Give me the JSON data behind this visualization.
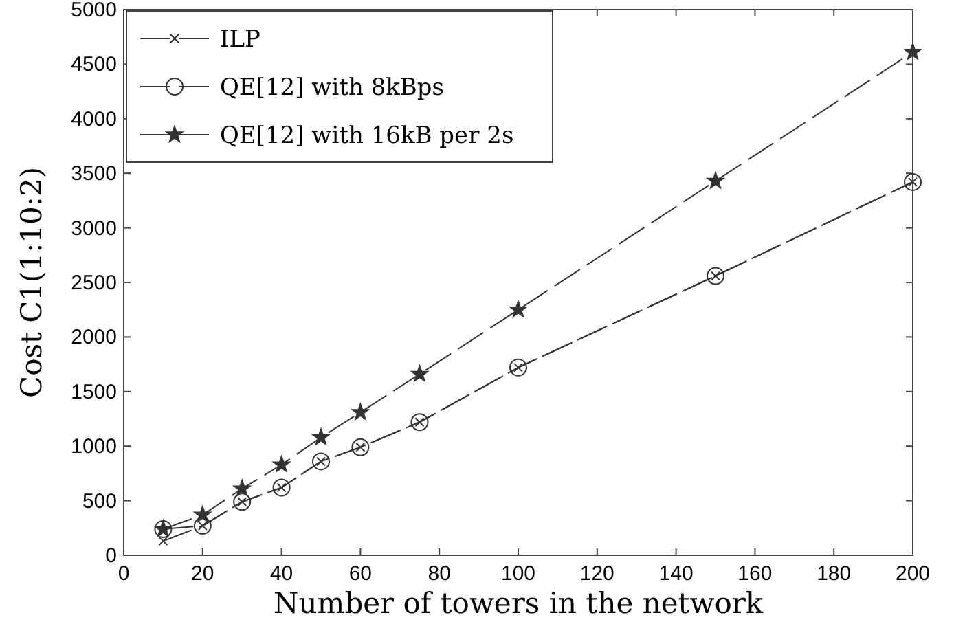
{
  "chart_data": {
    "type": "line",
    "xlabel": "Number of towers in the network",
    "ylabel": "Cost C1(1:10:2)",
    "x": [
      10,
      20,
      30,
      40,
      50,
      60,
      75,
      100,
      150,
      200
    ],
    "series": [
      {
        "name": "ILP",
        "color": "#333333",
        "marker": "cross",
        "values": [
          130,
          270,
          490,
          620,
          860,
          990,
          1220,
          1720,
          2560,
          3420
        ]
      },
      {
        "name": "QE[12] with 8kBps",
        "color": "#333333",
        "marker": "circle",
        "values": [
          240,
          270,
          490,
          620,
          860,
          990,
          1220,
          1720,
          2560,
          3420
        ]
      },
      {
        "name": "QE[12] with 16kB per 2s",
        "color": "#333333",
        "marker": "star",
        "values": [
          240,
          370,
          610,
          830,
          1080,
          1310,
          1660,
          2250,
          3430,
          4610
        ]
      }
    ],
    "xlim": [
      0,
      200
    ],
    "xticks": [
      0,
      20,
      40,
      60,
      80,
      100,
      120,
      140,
      160,
      180,
      200
    ],
    "ylim": [
      0,
      5000
    ],
    "yticks": [
      0,
      500,
      1000,
      1500,
      2000,
      2500,
      3000,
      3500,
      4000,
      4500,
      5000
    ],
    "grid": false,
    "legend": "top left",
    "line_style": "dashed"
  }
}
